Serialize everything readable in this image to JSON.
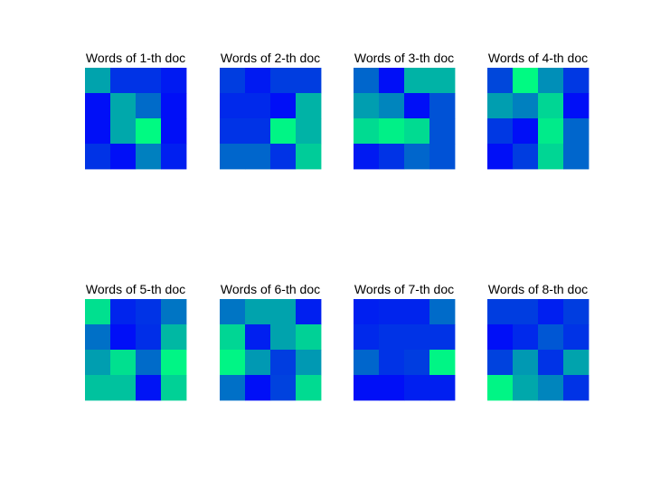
{
  "chart_data": [
    {
      "type": "heatmap",
      "title": "Words of 1-th doc",
      "colormap": "winter",
      "values": [
        [
          0.64,
          0.2,
          0.2,
          0.1
        ],
        [
          0.06,
          0.66,
          0.42,
          0.06
        ],
        [
          0.06,
          0.66,
          0.98,
          0.06
        ],
        [
          0.2,
          0.06,
          0.5,
          0.12
        ]
      ]
    },
    {
      "type": "heatmap",
      "title": "Words of 2-th doc",
      "colormap": "winter",
      "values": [
        [
          0.24,
          0.1,
          0.24,
          0.24
        ],
        [
          0.16,
          0.16,
          0.06,
          0.7
        ],
        [
          0.2,
          0.2,
          0.96,
          0.7
        ],
        [
          0.4,
          0.4,
          0.2,
          0.8
        ]
      ]
    },
    {
      "type": "heatmap",
      "title": "Words of 3-th doc",
      "colormap": "winter",
      "values": [
        [
          0.4,
          0.06,
          0.7,
          0.7
        ],
        [
          0.62,
          0.52,
          0.06,
          0.32
        ],
        [
          0.86,
          0.94,
          0.86,
          0.32
        ],
        [
          0.1,
          0.2,
          0.4,
          0.32
        ]
      ]
    },
    {
      "type": "heatmap",
      "title": "Words of 4-th doc",
      "colormap": "winter",
      "values": [
        [
          0.28,
          0.98,
          0.56,
          0.22
        ],
        [
          0.62,
          0.5,
          0.84,
          0.06
        ],
        [
          0.22,
          0.06,
          0.92,
          0.4
        ],
        [
          0.06,
          0.24,
          0.84,
          0.4
        ]
      ]
    },
    {
      "type": "heatmap",
      "title": "Words of 5-th doc",
      "colormap": "winter",
      "values": [
        [
          0.88,
          0.14,
          0.2,
          0.46
        ],
        [
          0.44,
          0.06,
          0.18,
          0.72
        ],
        [
          0.62,
          0.88,
          0.42,
          0.96
        ],
        [
          0.76,
          0.76,
          0.08,
          0.82
        ]
      ]
    },
    {
      "type": "heatmap",
      "title": "Words of 6-th doc",
      "colormap": "winter",
      "values": [
        [
          0.46,
          0.64,
          0.64,
          0.12
        ],
        [
          0.84,
          0.12,
          0.64,
          0.82
        ],
        [
          0.96,
          0.6,
          0.24,
          0.6
        ],
        [
          0.44,
          0.06,
          0.26,
          0.86
        ]
      ]
    },
    {
      "type": "heatmap",
      "title": "Words of 7-th doc",
      "colormap": "winter",
      "values": [
        [
          0.12,
          0.14,
          0.14,
          0.42
        ],
        [
          0.16,
          0.2,
          0.2,
          0.2
        ],
        [
          0.4,
          0.2,
          0.24,
          0.96
        ],
        [
          0.06,
          0.06,
          0.12,
          0.12
        ]
      ]
    },
    {
      "type": "heatmap",
      "title": "Words of 8-th doc",
      "colormap": "winter",
      "values": [
        [
          0.24,
          0.24,
          0.12,
          0.24
        ],
        [
          0.06,
          0.16,
          0.34,
          0.2
        ],
        [
          0.26,
          0.6,
          0.2,
          0.64
        ],
        [
          0.96,
          0.66,
          0.52,
          0.2
        ]
      ]
    }
  ]
}
